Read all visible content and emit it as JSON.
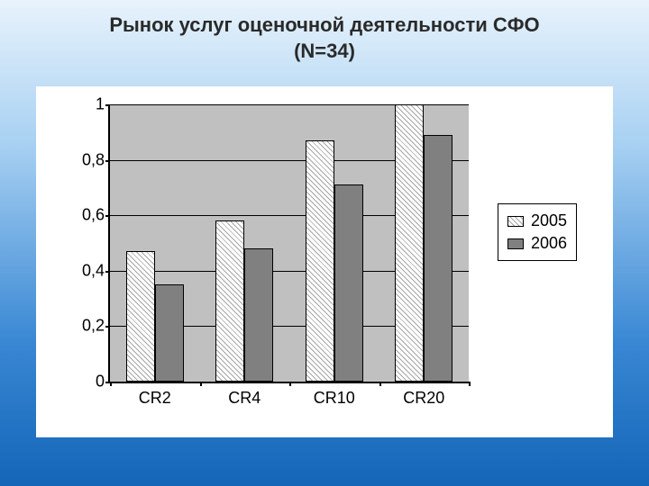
{
  "slide": {
    "title_line1": "Рынок услуг оценочной деятельности СФО",
    "title_line2": "(N=34)",
    "background_gradient": [
      "#e8f3fc",
      "#a7d0f2",
      "#3a88d4",
      "#1365b8"
    ]
  },
  "chart": {
    "type": "bar",
    "plot_background": "#c0c0c0",
    "axis_color": "#000000",
    "grid_color": "#000000",
    "font_family": "Arial",
    "tick_fontsize": 18,
    "category_fontsize": 18,
    "categories": [
      "CR2",
      "CR4",
      "CR10",
      "CR20"
    ],
    "ylim": [
      0,
      1
    ],
    "ytick_step": 0.2,
    "yticks": [
      "0",
      "0,2",
      "0,4",
      "0,6",
      "0,8",
      "1"
    ],
    "bar_group_gap_ratio": 0.25,
    "bar_width_ratio": 0.32,
    "series": [
      {
        "name": "2005",
        "fill": "hatch",
        "fill_color": "#ffffff",
        "hatch_color": "#000000",
        "border": "#000000",
        "values": [
          0.47,
          0.58,
          0.87,
          1.0
        ]
      },
      {
        "name": "2006",
        "fill": "solid",
        "fill_color": "#808080",
        "border": "#000000",
        "values": [
          0.35,
          0.48,
          0.71,
          0.89
        ]
      }
    ],
    "legend": {
      "position": "right",
      "border": "#000000",
      "background": "#ffffff",
      "items": [
        "2005",
        "2006"
      ]
    }
  }
}
